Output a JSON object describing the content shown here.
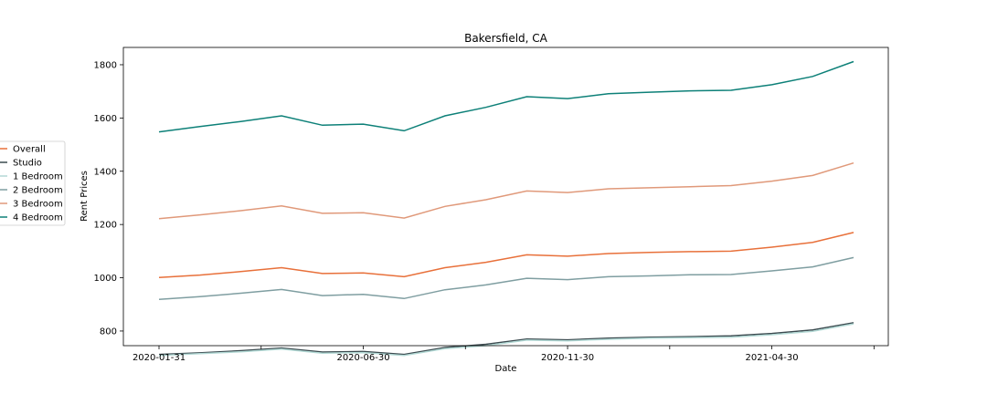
{
  "chart_data": {
    "type": "line",
    "title": "Bakersfield, CA",
    "xlabel": "Date",
    "ylabel": "Rent Prices",
    "x": [
      "2020-01-31",
      "2020-02-29",
      "2020-03-31",
      "2020-04-30",
      "2020-05-31",
      "2020-06-30",
      "2020-07-31",
      "2020-08-31",
      "2020-09-30",
      "2020-10-31",
      "2020-11-30",
      "2020-12-31",
      "2021-01-31",
      "2021-02-28",
      "2021-03-31",
      "2021-04-30",
      "2021-05-31",
      "2021-06-30"
    ],
    "x_tick_labels": [
      "2020-01-31",
      "2020-06-30",
      "2020-11-30",
      "2021-04-30"
    ],
    "ylim": [
      745,
      1865
    ],
    "y_ticks": [
      800,
      1000,
      1200,
      1400,
      1600,
      1800
    ],
    "grid": false,
    "legend_position": "left, outside plot",
    "series": [
      {
        "name": "Overall",
        "color": "#e8703a",
        "values": [
          1001,
          1010,
          1023,
          1038,
          1016,
          1018,
          1004,
          1038,
          1058,
          1086,
          1081,
          1091,
          1095,
          1098,
          1100,
          1115,
          1133,
          1170
        ]
      },
      {
        "name": "Studio",
        "color": "#3b4a4f",
        "values": [
          712,
          718,
          726,
          736,
          721,
          723,
          712,
          738,
          750,
          770,
          767,
          773,
          777,
          779,
          782,
          791,
          804,
          831
        ]
      },
      {
        "name": "1 Bedroom",
        "color": "#b3d9d5",
        "values": [
          708,
          715,
          722,
          732,
          717,
          719,
          708,
          734,
          745,
          766,
          763,
          769,
          773,
          775,
          777,
          786,
          799,
          827
        ]
      },
      {
        "name": "2 Bedroom",
        "color": "#7f9ea1",
        "values": [
          919,
          929,
          942,
          956,
          933,
          938,
          922,
          955,
          973,
          998,
          993,
          1004,
          1007,
          1011,
          1012,
          1026,
          1041,
          1076
        ]
      },
      {
        "name": "3 Bedroom",
        "color": "#e0997a",
        "values": [
          1222,
          1236,
          1252,
          1270,
          1242,
          1244,
          1224,
          1268,
          1293,
          1326,
          1320,
          1334,
          1338,
          1342,
          1346,
          1363,
          1384,
          1431
        ]
      },
      {
        "name": "4 Bedroom",
        "color": "#0d8078",
        "values": [
          1548,
          1568,
          1587,
          1608,
          1573,
          1577,
          1552,
          1608,
          1640,
          1680,
          1673,
          1691,
          1697,
          1702,
          1704,
          1725,
          1756,
          1812
        ]
      }
    ]
  }
}
